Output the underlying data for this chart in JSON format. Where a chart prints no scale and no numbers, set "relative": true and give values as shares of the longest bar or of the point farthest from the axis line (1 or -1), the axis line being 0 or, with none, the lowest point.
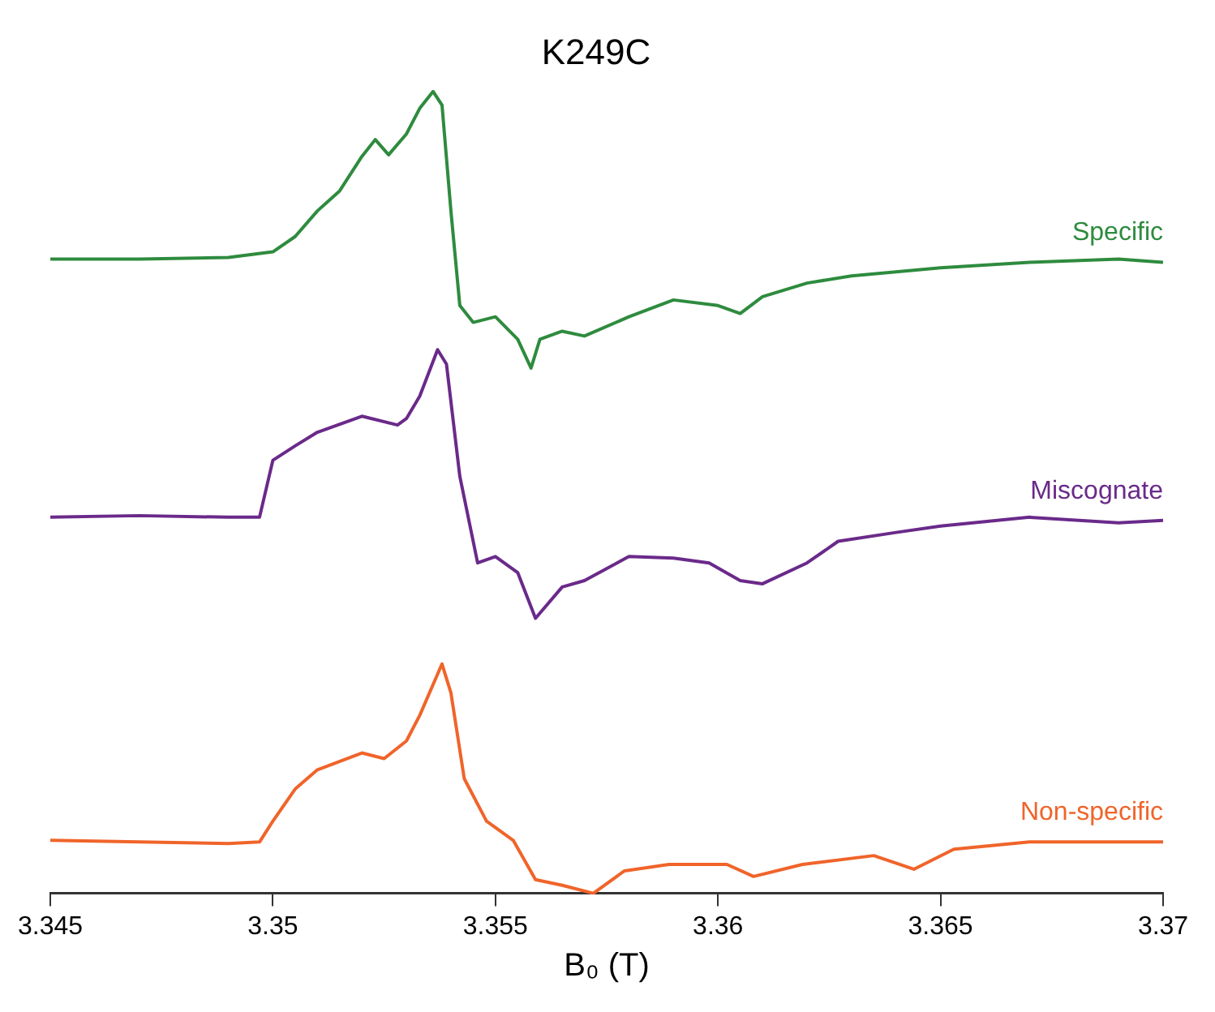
{
  "chart_data": {
    "type": "line",
    "title": "K249C",
    "xlabel": "B₀ (T)",
    "relative": true,
    "tick_labels": "x",
    "grid": false,
    "legend": false,
    "xlim": [
      3.345,
      3.37
    ],
    "xticks": [
      3.345,
      3.35,
      3.355,
      3.36,
      3.365,
      3.37
    ],
    "series": [
      {
        "name": "Specific",
        "color": "#2e8b3e",
        "x": [
          3.345,
          3.347,
          3.349,
          3.35,
          3.3505,
          3.351,
          3.3515,
          3.352,
          3.3523,
          3.3526,
          3.353,
          3.3533,
          3.3536,
          3.3538,
          3.354,
          3.3542,
          3.3545,
          3.355,
          3.3555,
          3.3558,
          3.356,
          3.3565,
          3.357,
          3.358,
          3.359,
          3.36,
          3.3605,
          3.361,
          3.362,
          3.363,
          3.365,
          3.367,
          3.369,
          3.37
        ],
        "values": [
          0.791,
          0.791,
          0.793,
          0.8,
          0.819,
          0.851,
          0.876,
          0.919,
          0.94,
          0.921,
          0.947,
          0.979,
          1,
          0.983,
          0.851,
          0.733,
          0.712,
          0.719,
          0.691,
          0.655,
          0.691,
          0.701,
          0.695,
          0.719,
          0.74,
          0.733,
          0.723,
          0.744,
          0.761,
          0.77,
          0.78,
          0.787,
          0.791,
          0.787
        ]
      },
      {
        "name": "Miscognate",
        "color": "#6a2a8a",
        "x": [
          3.345,
          3.347,
          3.349,
          3.3497,
          3.35,
          3.3505,
          3.351,
          3.352,
          3.3528,
          3.353,
          3.3533,
          3.3537,
          3.3539,
          3.3542,
          3.3546,
          3.355,
          3.3555,
          3.3559,
          3.3565,
          3.357,
          3.358,
          3.359,
          3.3598,
          3.3605,
          3.361,
          3.362,
          3.3627,
          3.364,
          3.365,
          3.367,
          3.369,
          3.37
        ],
        "values": [
          0.469,
          0.471,
          0.469,
          0.469,
          0.54,
          0.558,
          0.575,
          0.595,
          0.584,
          0.592,
          0.62,
          0.678,
          0.66,
          0.52,
          0.412,
          0.42,
          0.4,
          0.343,
          0.382,
          0.39,
          0.42,
          0.418,
          0.412,
          0.39,
          0.386,
          0.412,
          0.439,
          0.45,
          0.458,
          0.469,
          0.462,
          0.465
        ]
      },
      {
        "name": "Non-specific",
        "color": "#f0642a",
        "x": [
          3.345,
          3.347,
          3.349,
          3.3497,
          3.35,
          3.3505,
          3.351,
          3.352,
          3.3525,
          3.353,
          3.3533,
          3.3538,
          3.354,
          3.3543,
          3.3548,
          3.3554,
          3.3559,
          3.3565,
          3.3572,
          3.3579,
          3.3589,
          3.3602,
          3.3608,
          3.3619,
          3.3635,
          3.3644,
          3.3653,
          3.367,
          3.37
        ],
        "values": [
          0.066,
          0.064,
          0.062,
          0.064,
          0.09,
          0.13,
          0.154,
          0.175,
          0.168,
          0.19,
          0.222,
          0.286,
          0.25,
          0.143,
          0.09,
          0.066,
          0.017,
          0.01,
          0,
          0.028,
          0.036,
          0.036,
          0.021,
          0.036,
          0.047,
          0.03,
          0.055,
          0.064,
          0.064
        ]
      }
    ]
  }
}
